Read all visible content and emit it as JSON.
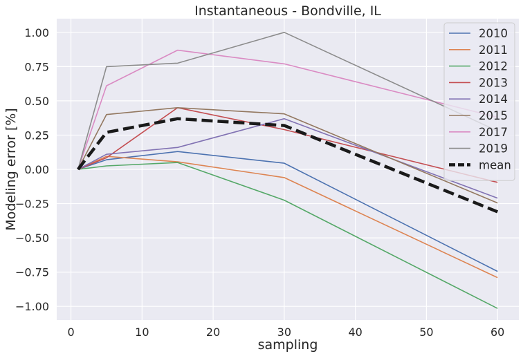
{
  "chart_data": {
    "type": "line",
    "title": "Instantaneous - Bondville, IL",
    "xlabel": "sampling",
    "ylabel": "Modeling error [%]",
    "x": [
      1,
      5,
      15,
      30,
      60
    ],
    "xlim": [
      -2,
      63
    ],
    "ylim": [
      -1.1,
      1.1
    ],
    "xticks": [
      0,
      10,
      20,
      30,
      40,
      50,
      60
    ],
    "yticks": [
      -1.0,
      -0.75,
      -0.5,
      -0.25,
      0.0,
      0.25,
      0.5,
      0.75,
      1.0
    ],
    "ytick_labels": [
      "−1.00",
      "−0.75",
      "−0.50",
      "−0.25",
      "0.00",
      "0.25",
      "0.50",
      "0.75",
      "1.00"
    ],
    "grid": true,
    "legend_position": "top-right",
    "series": [
      {
        "name": "2010",
        "color": "#4c72b0",
        "values": [
          0,
          0.07,
          0.13,
          0.045,
          -0.745
        ]
      },
      {
        "name": "2011",
        "color": "#dd8452",
        "values": [
          0,
          0.095,
          0.055,
          -0.06,
          -0.79
        ]
      },
      {
        "name": "2012",
        "color": "#55a868",
        "values": [
          0,
          0.025,
          0.05,
          -0.225,
          -1.015
        ]
      },
      {
        "name": "2013",
        "color": "#c44e52",
        "values": [
          0,
          0.085,
          0.45,
          0.29,
          -0.095
        ]
      },
      {
        "name": "2014",
        "color": "#8172b3",
        "values": [
          0,
          0.11,
          0.16,
          0.37,
          -0.21
        ]
      },
      {
        "name": "2015",
        "color": "#937860",
        "values": [
          0,
          0.4,
          0.45,
          0.405,
          -0.245
        ]
      },
      {
        "name": "2017",
        "color": "#da8bc3",
        "values": [
          0,
          0.61,
          0.87,
          0.77,
          0.38
        ]
      },
      {
        "name": "2019",
        "color": "#8c8c8c",
        "values": [
          0,
          0.75,
          0.775,
          1.0,
          0.28
        ]
      },
      {
        "name": "mean",
        "color": "#1a1a1a",
        "dashed": true,
        "values": [
          0,
          0.27,
          0.37,
          0.32,
          -0.31
        ]
      }
    ]
  }
}
